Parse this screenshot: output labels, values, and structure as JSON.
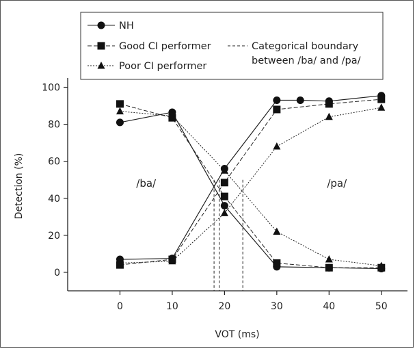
{
  "chart_data": {
    "type": "line",
    "xlabel": "VOT (ms)",
    "ylabel": "Detection (%)",
    "xlim": [
      -10,
      55
    ],
    "ylim": [
      -10,
      105
    ],
    "xticks": [
      0,
      10,
      20,
      30,
      40,
      50
    ],
    "yticks": [
      0,
      20,
      40,
      60,
      80,
      100
    ],
    "legend": [
      {
        "label": "NH",
        "marker": "circle",
        "line": "solid"
      },
      {
        "label": "Good CI performer",
        "marker": "square",
        "line": "dashed"
      },
      {
        "label": "Poor CI performer",
        "marker": "triangle",
        "line": "dotted"
      },
      {
        "label": "Categorical boundary between /ba/ and /pa/",
        "line": "dashed-vertical"
      }
    ],
    "legend_lines": [
      "Categorical boundary",
      "between /ba/ and /pa/"
    ],
    "region_labels": [
      {
        "text": "/ba/",
        "x": 5,
        "y": 48
      },
      {
        "text": "/pa/",
        "x": 41.5,
        "y": 48
      }
    ],
    "series": [
      {
        "name": "NH",
        "marker": "circle",
        "line": "solid",
        "curve": "/ba/",
        "x": [
          0,
          10,
          20,
          30,
          40,
          50
        ],
        "y": [
          81,
          86.5,
          36,
          3,
          2.5,
          2
        ]
      },
      {
        "name": "NH",
        "marker": "circle",
        "line": "solid",
        "curve": "/pa/",
        "x": [
          0,
          10,
          20,
          30,
          34.5,
          40,
          50
        ],
        "y": [
          7,
          7.5,
          56,
          93,
          93,
          92.5,
          95.5
        ]
      },
      {
        "name": "Good CI performer",
        "marker": "square",
        "line": "dashed",
        "curve": "/ba/",
        "x": [
          0,
          10,
          20,
          30,
          40,
          50
        ],
        "y": [
          91,
          83.5,
          41,
          5,
          2.5,
          2.5
        ]
      },
      {
        "name": "Good CI performer",
        "marker": "square",
        "line": "dashed",
        "curve": "/pa/",
        "x": [
          0,
          10,
          20,
          30,
          40,
          50
        ],
        "y": [
          4,
          7,
          48.5,
          88,
          91,
          93.5
        ]
      },
      {
        "name": "Poor CI performer",
        "marker": "triangle",
        "line": "dotted",
        "curve": "/ba/",
        "x": [
          0,
          10,
          20,
          30,
          40,
          50
        ],
        "y": [
          87,
          84.5,
          55,
          22,
          7,
          3.5
        ]
      },
      {
        "name": "Poor CI performer",
        "marker": "triangle",
        "line": "dotted",
        "curve": "/pa/",
        "x": [
          0,
          10,
          20,
          30,
          40,
          50
        ],
        "y": [
          5,
          6,
          32,
          68,
          84,
          89
        ]
      }
    ],
    "boundaries": [
      {
        "series": "NH",
        "x": 18
      },
      {
        "series": "Good CI performer",
        "x": 19
      },
      {
        "series": "Poor CI performer",
        "x": 23.5
      }
    ]
  }
}
